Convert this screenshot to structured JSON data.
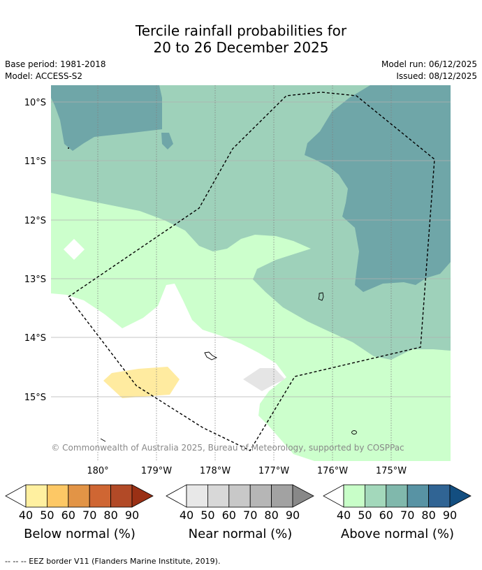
{
  "title": {
    "line1": "Tercile rainfall probabilities for",
    "line2": "20 to 26 December 2025"
  },
  "meta": {
    "base_period": "Base period: 1981-2018",
    "model": "Model: ACCESS-S2",
    "model_run": "Model run: 06/12/2025",
    "issued": "Issued: 08/12/2025"
  },
  "map": {
    "lat_labels": [
      "10°S",
      "11°S",
      "12°S",
      "13°S",
      "14°S",
      "15°S"
    ],
    "lon_labels": [
      "180°",
      "179°W",
      "178°W",
      "177°W",
      "176°W",
      "175°W"
    ],
    "copyright": "© Commonwealth of Australia 2025, Bureau of Meteorology, supported by COSPPac"
  },
  "colorbars": [
    {
      "label": "Below normal (%)",
      "ticks": [
        "40",
        "50",
        "60",
        "70",
        "80",
        "90"
      ],
      "colors": [
        "#fff0a0",
        "#fdc865",
        "#e29446",
        "#cf6633",
        "#b24a27",
        "#9a3015"
      ]
    },
    {
      "label": "Near normal (%)",
      "ticks": [
        "40",
        "50",
        "60",
        "70",
        "80",
        "90"
      ],
      "colors": [
        "#e8e8e8",
        "#d8d8d8",
        "#c8c8c8",
        "#b6b6b6",
        "#a2a2a2",
        "#888888"
      ]
    },
    {
      "label": "Above normal (%)",
      "ticks": [
        "40",
        "50",
        "60",
        "70",
        "80",
        "90"
      ],
      "colors": [
        "#c8fec8",
        "#a3d8bb",
        "#80b8ac",
        "#5893a4",
        "#306494",
        "#134e80"
      ]
    }
  ],
  "footer": "--  --  -- EEZ border V11 (Flanders Marine Institute, 2019).",
  "colors": {
    "above_40_50": "#ccffcc",
    "above_50_60": "#9ed1ba",
    "above_60_70": "#6fa6a8",
    "near_40_50": "#e5e5e5",
    "below_40_50": "#ffeba0"
  }
}
